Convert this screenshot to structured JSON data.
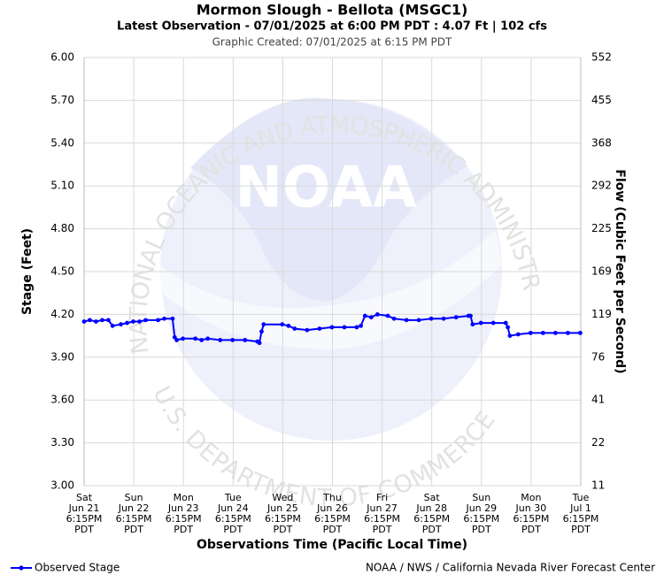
{
  "chart_data": {
    "type": "line",
    "title": "Mormon Slough - Bellota (MSGC1)",
    "subtitle": "Latest Observation - 07/01/2025 at 6:00 PM PDT : 4.07 Ft | 102 cfs",
    "created": "Graphic Created: 07/01/2025 at 6:15 PM PDT",
    "xlabel": "Observations Time (Pacific Local Time)",
    "ylabel": "Stage (Feet)",
    "y2label": "Flow (Cubic Feet per Second)",
    "footer": "NOAA / NWS / California Nevada River Forecast Center",
    "watermark": {
      "logo": "NOAA",
      "top": "NATIONAL OCEANIC AND ATMOSPHERIC ADMINISTRATION",
      "bottom": "U.S. DEPARTMENT OF COMMERCE"
    },
    "grid": true,
    "legend": "bottom-left",
    "xlim": [
      "Jun 21 6:15PM",
      "Jul 1 6:15PM"
    ],
    "xticks": [
      {
        "value": "Jun 21 6:15PM",
        "label": [
          "Sat",
          "Jun 21",
          "6:15PM",
          "PDT"
        ]
      },
      {
        "value": "Jun 22 6:15PM",
        "label": [
          "Sun",
          "Jun 22",
          "6:15PM",
          "PDT"
        ]
      },
      {
        "value": "Jun 23 6:15PM",
        "label": [
          "Mon",
          "Jun 23",
          "6:15PM",
          "PDT"
        ]
      },
      {
        "value": "Jun 24 6:15PM",
        "label": [
          "Tue",
          "Jun 24",
          "6:15PM",
          "PDT"
        ]
      },
      {
        "value": "Jun 25 6:15PM",
        "label": [
          "Wed",
          "Jun 25",
          "6:15PM",
          "PDT"
        ]
      },
      {
        "value": "Jun 26 6:15PM",
        "label": [
          "Thu",
          "Jun 26",
          "6:15PM",
          "PDT"
        ]
      },
      {
        "value": "Jun 27 6:15PM",
        "label": [
          "Fri",
          "Jun 27",
          "6:15PM",
          "PDT"
        ]
      },
      {
        "value": "Jun 28 6:15PM",
        "label": [
          "Sat",
          "Jun 28",
          "6:15PM",
          "PDT"
        ]
      },
      {
        "value": "Jun 29 6:15PM",
        "label": [
          "Sun",
          "Jun 29",
          "6:15PM",
          "PDT"
        ]
      },
      {
        "value": "Jun 30 6:15PM",
        "label": [
          "Mon",
          "Jun 30",
          "6:15PM",
          "PDT"
        ]
      },
      {
        "value": "Jul 1 6:15PM",
        "label": [
          "Tue",
          "Jul 1",
          "6:15PM",
          "PDT"
        ]
      }
    ],
    "ylim": [
      3.0,
      6.0
    ],
    "yticks": [
      {
        "value": 3.0,
        "label": "3.00"
      },
      {
        "value": 3.3,
        "label": "3.30"
      },
      {
        "value": 3.6,
        "label": "3.60"
      },
      {
        "value": 3.9,
        "label": "3.90"
      },
      {
        "value": 4.2,
        "label": "4.20"
      },
      {
        "value": 4.5,
        "label": "4.50"
      },
      {
        "value": 4.8,
        "label": "4.80"
      },
      {
        "value": 5.1,
        "label": "5.10"
      },
      {
        "value": 5.4,
        "label": "5.40"
      },
      {
        "value": 5.7,
        "label": "5.70"
      },
      {
        "value": 6.0,
        "label": "6.00"
      }
    ],
    "y2lim": [
      11,
      552
    ],
    "y2ticks": [
      11,
      22,
      41,
      76,
      119,
      169,
      225,
      292,
      368,
      455,
      552
    ],
    "series": [
      {
        "name": "Observed Stage",
        "color": "#0000ff",
        "x": [
          "Jun 21 6:15PM",
          "Jun 21 9:00PM",
          "Jun 22 12:00AM",
          "Jun 22 3:00AM",
          "Jun 22 6:00AM",
          "Jun 22 8:00AM",
          "Jun 22 12:00PM",
          "Jun 22 3:00PM",
          "Jun 22 6:00PM",
          "Jun 22 9:00PM",
          "Jun 23 12:00AM",
          "Jun 23 6:00AM",
          "Jun 23 9:00AM",
          "Jun 23 1:00PM",
          "Jun 23 2:00PM",
          "Jun 23 3:00PM",
          "Jun 23 6:00PM",
          "Jun 24 12:00AM",
          "Jun 24 3:00AM",
          "Jun 24 6:00AM",
          "Jun 24 12:00PM",
          "Jun 24 6:00PM",
          "Jun 25 12:00AM",
          "Jun 25 6:00AM",
          "Jun 25 7:00AM",
          "Jun 25 8:00AM",
          "Jun 25 9:00AM",
          "Jun 25 6:00PM",
          "Jun 25 9:00PM",
          "Jun 26 12:00AM",
          "Jun 26 6:00AM",
          "Jun 26 12:00PM",
          "Jun 26 6:00PM",
          "Jun 27 12:00AM",
          "Jun 27 6:00AM",
          "Jun 27 8:00AM",
          "Jun 27 10:00AM",
          "Jun 27 1:00PM",
          "Jun 27 4:00PM",
          "Jun 27 9:00PM",
          "Jun 28 12:00AM",
          "Jun 28 6:00AM",
          "Jun 28 12:00PM",
          "Jun 28 6:00PM",
          "Jun 29 12:00AM",
          "Jun 29 6:00AM",
          "Jun 29 12:00PM",
          "Jun 29 1:00PM",
          "Jun 29 2:00PM",
          "Jun 29 6:00PM",
          "Jun 30 12:00AM",
          "Jun 30 6:00AM",
          "Jun 30 7:00AM",
          "Jun 30 8:00AM",
          "Jun 30 12:00PM",
          "Jun 30 6:00PM",
          "Jul 1 12:00AM",
          "Jul 1 6:00AM",
          "Jul 1 12:00PM",
          "Jul 1 6:00PM"
        ],
        "values": [
          4.15,
          4.16,
          4.15,
          4.16,
          4.16,
          4.12,
          4.13,
          4.14,
          4.15,
          4.15,
          4.16,
          4.16,
          4.17,
          4.17,
          4.04,
          4.02,
          4.03,
          4.03,
          4.02,
          4.03,
          4.02,
          4.02,
          4.02,
          4.01,
          4.0,
          4.08,
          4.13,
          4.13,
          4.12,
          4.1,
          4.09,
          4.1,
          4.11,
          4.11,
          4.11,
          4.12,
          4.19,
          4.18,
          4.2,
          4.19,
          4.17,
          4.16,
          4.16,
          4.17,
          4.17,
          4.18,
          4.19,
          4.19,
          4.13,
          4.14,
          4.14,
          4.14,
          4.11,
          4.05,
          4.06,
          4.07,
          4.07,
          4.07,
          4.07,
          4.07
        ]
      }
    ]
  }
}
